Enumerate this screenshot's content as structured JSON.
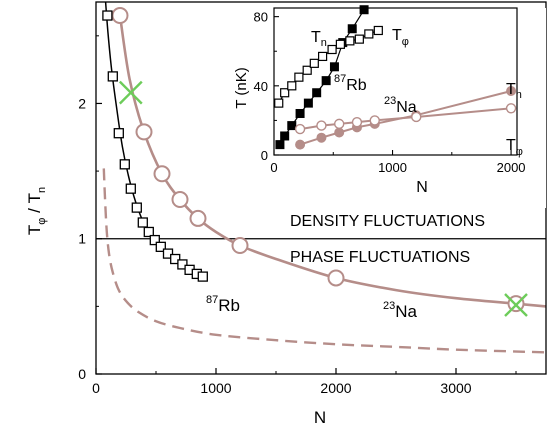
{
  "chart_data": [
    {
      "type": "line",
      "role": "main",
      "xlabel": "N",
      "ylabel": "T",
      "ylabel_sub": "φ",
      "ylabel_sep": " / T",
      "ylabel_sub2": "n",
      "xlim": [
        0,
        3750
      ],
      "ylim": [
        0,
        2.75
      ],
      "x_ticks": [
        0,
        1000,
        2000,
        3000
      ],
      "x_tick_labels": [
        "0",
        "1000",
        "2000",
        "3000"
      ],
      "y_ticks": [
        0,
        1,
        2
      ],
      "y_tick_labels": [
        "0",
        "1",
        "2"
      ],
      "reference_line": {
        "y": 1
      },
      "annotations": {
        "upper_region": "DENSITY FLUCTUATIONS",
        "lower_region": "PHASE FLUCTUATIONS",
        "rb_mass": "87",
        "rb_elem": "Rb",
        "na_mass": "23",
        "na_elem": "Na"
      },
      "colors": {
        "na": "#b58d89",
        "rb": "#000000",
        "cross": "#6dcc5a",
        "frame": "#000000"
      },
      "series": [
        {
          "label": "87Rb",
          "marker": "open-square",
          "points": [
            [
              95,
              2.65
            ],
            [
              140,
              2.2
            ],
            [
              190,
              1.78
            ],
            [
              240,
              1.55
            ],
            [
              290,
              1.37
            ],
            [
              340,
              1.23
            ],
            [
              390,
              1.12
            ],
            [
              440,
              1.05
            ],
            [
              490,
              0.99
            ],
            [
              540,
              0.94
            ],
            [
              600,
              0.89
            ],
            [
              660,
              0.85
            ],
            [
              720,
              0.81
            ],
            [
              780,
              0.77
            ],
            [
              840,
              0.74
            ],
            [
              890,
              0.72
            ]
          ],
          "curve": [
            [
              80,
              2.75
            ],
            [
              100,
              2.52
            ],
            [
              130,
              2.25
            ],
            [
              170,
              1.98
            ],
            [
              220,
              1.68
            ],
            [
              280,
              1.43
            ],
            [
              350,
              1.22
            ],
            [
              430,
              1.06
            ],
            [
              520,
              0.96
            ],
            [
              620,
              0.87
            ],
            [
              720,
              0.8
            ],
            [
              820,
              0.75
            ],
            [
              900,
              0.71
            ]
          ]
        },
        {
          "label": "23Na",
          "marker": "open-circle",
          "points": [
            [
              200,
              2.65
            ],
            [
              400,
              1.79
            ],
            [
              550,
              1.48
            ],
            [
              700,
              1.29
            ],
            [
              850,
              1.15
            ],
            [
              1200,
              0.95
            ],
            [
              2000,
              0.71
            ],
            [
              3500,
              0.52
            ]
          ],
          "curve": [
            [
              200,
              2.65
            ],
            [
              280,
              2.18
            ],
            [
              400,
              1.79
            ],
            [
              550,
              1.48
            ],
            [
              700,
              1.29
            ],
            [
              850,
              1.15
            ],
            [
              1000,
              1.05
            ],
            [
              1200,
              0.95
            ],
            [
              1500,
              0.85
            ],
            [
              2000,
              0.71
            ],
            [
              2500,
              0.62
            ],
            [
              3000,
              0.56
            ],
            [
              3500,
              0.52
            ],
            [
              3750,
              0.5
            ]
          ]
        },
        {
          "label": "dashed",
          "style": "dashed",
          "curve": [
            [
              65,
              1.52
            ],
            [
              75,
              1.3
            ],
            [
              90,
              1.05
            ],
            [
              110,
              0.88
            ],
            [
              140,
              0.75
            ],
            [
              190,
              0.62
            ],
            [
              260,
              0.53
            ],
            [
              350,
              0.46
            ],
            [
              500,
              0.39
            ],
            [
              700,
              0.34
            ],
            [
              1000,
              0.29
            ],
            [
              1500,
              0.25
            ],
            [
              2000,
              0.22
            ],
            [
              2500,
              0.2
            ],
            [
              3000,
              0.18
            ],
            [
              3750,
              0.16
            ]
          ]
        }
      ],
      "crosses": [
        [
          290,
          2.08
        ],
        [
          3500,
          0.51
        ]
      ]
    },
    {
      "type": "line",
      "role": "inset",
      "xlabel": "N",
      "ylabel": "T (nK)",
      "xlim": [
        0,
        2050
      ],
      "ylim": [
        0,
        85
      ],
      "x_ticks": [
        0,
        1000,
        2000
      ],
      "x_tick_labels": [
        "0",
        "1000",
        "2000"
      ],
      "y_ticks": [
        0,
        40,
        80
      ],
      "y_tick_labels": [
        "0",
        "40",
        "80"
      ],
      "annotations": {
        "tn_rb_main": "T",
        "tn_rb_sub": "n",
        "tphi_rb_main": "T",
        "tphi_rb_sub": "φ",
        "rb_mass": "87",
        "rb_elem": "Rb",
        "na_mass": "23",
        "na_elem": "Na",
        "tn_na_main": "T",
        "tn_na_sub": "n",
        "tphi_na_main": "T",
        "tphi_na_sub": "φ"
      },
      "series": [
        {
          "label": "Rb Tn",
          "marker": "filled-square",
          "color": "#000000",
          "points": [
            [
              50,
              6
            ],
            [
              90,
              11
            ],
            [
              150,
              17
            ],
            [
              220,
              24
            ],
            [
              290,
              30
            ],
            [
              360,
              36
            ],
            [
              440,
              43
            ],
            [
              510,
              51
            ],
            [
              580,
              65
            ],
            [
              660,
              73
            ],
            [
              760,
              84
            ]
          ]
        },
        {
          "label": "Rb Tphi",
          "marker": "open-square",
          "color": "#000000",
          "points": [
            [
              40,
              30
            ],
            [
              90,
              36
            ],
            [
              150,
              40
            ],
            [
              210,
              45
            ],
            [
              280,
              49
            ],
            [
              340,
              53
            ],
            [
              410,
              57
            ],
            [
              490,
              61
            ],
            [
              560,
              64
            ],
            [
              640,
              66
            ],
            [
              720,
              67
            ],
            [
              800,
              70
            ],
            [
              880,
              72
            ]
          ]
        },
        {
          "label": "Na Tn",
          "marker": "filled-circle",
          "color": "#b58d89",
          "points": [
            [
              220,
              6
            ],
            [
              400,
              10
            ],
            [
              550,
              13
            ],
            [
              700,
              16
            ],
            [
              850,
              18
            ],
            [
              1200,
              23
            ],
            [
              2000,
              37
            ]
          ]
        },
        {
          "label": "Na Tphi",
          "marker": "open-circle",
          "color": "#b58d89",
          "points": [
            [
              220,
              15
            ],
            [
              400,
              17
            ],
            [
              550,
              18
            ],
            [
              700,
              19
            ],
            [
              850,
              20
            ],
            [
              1200,
              22
            ],
            [
              2000,
              27
            ]
          ]
        }
      ]
    }
  ]
}
